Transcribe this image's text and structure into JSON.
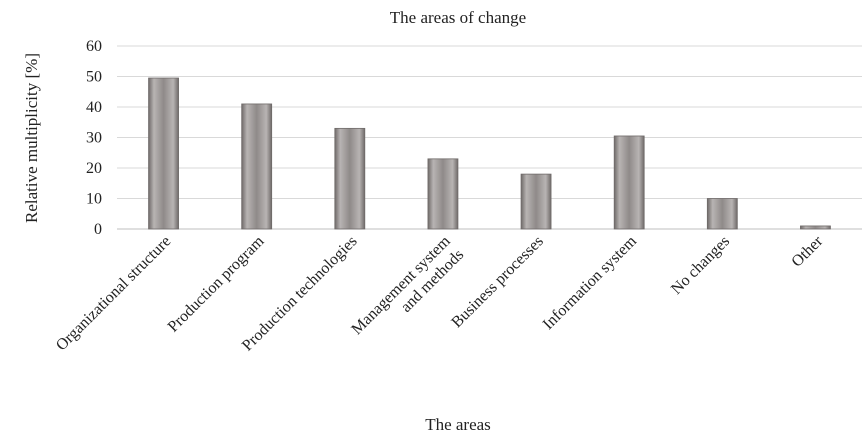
{
  "chart_data": {
    "type": "bar",
    "title": "The areas of change",
    "xlabel": "The areas",
    "ylabel": "Relative multiplicity [%]",
    "ylim": [
      0,
      60
    ],
    "yticks": [
      0,
      10,
      20,
      30,
      40,
      50,
      60
    ],
    "grid": true,
    "categories": [
      [
        "Organizational structure"
      ],
      [
        "Production program"
      ],
      [
        "Production technologies"
      ],
      [
        "Management system",
        "and methods"
      ],
      [
        "Business processes"
      ],
      [
        "Information system"
      ],
      [
        "No changes"
      ],
      [
        "Other"
      ]
    ],
    "values": [
      49.5,
      41,
      33,
      23,
      18,
      30.5,
      10,
      1
    ],
    "bar_color": "#8a8584"
  }
}
